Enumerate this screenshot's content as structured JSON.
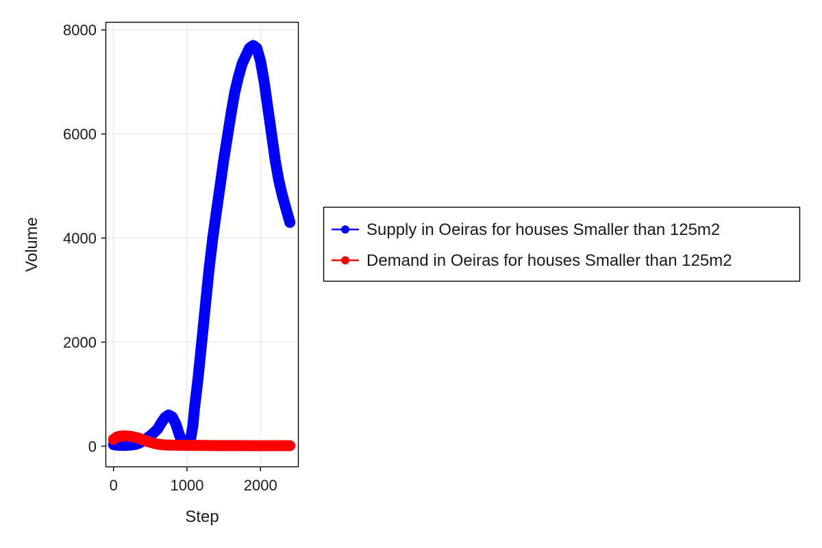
{
  "chart_data": {
    "type": "scatter",
    "title": "",
    "xlabel": "Step",
    "ylabel": "Volume",
    "xlim": [
      -100,
      2510
    ],
    "ylim": [
      -390,
      8140
    ],
    "xticks": [
      0,
      1000,
      2000
    ],
    "yticks": [
      0,
      2000,
      4000,
      6000,
      8000
    ],
    "grid": true,
    "legend_position": "right",
    "series": [
      {
        "name": "Supply in Oeiras for houses Smaller than 125m2",
        "color": "#0000ff",
        "x": [
          0,
          50,
          100,
          150,
          200,
          250,
          300,
          350,
          400,
          450,
          500,
          550,
          600,
          650,
          700,
          750,
          800,
          850,
          900,
          950,
          1000,
          1050,
          1080,
          1100,
          1150,
          1200,
          1250,
          1300,
          1350,
          1400,
          1450,
          1500,
          1550,
          1600,
          1650,
          1700,
          1750,
          1800,
          1850,
          1900,
          1950,
          2000,
          2050,
          2100,
          2150,
          2200,
          2250,
          2300,
          2350,
          2400
        ],
        "y": [
          30,
          20,
          15,
          15,
          20,
          25,
          35,
          60,
          100,
          150,
          200,
          260,
          330,
          450,
          550,
          600,
          560,
          420,
          200,
          80,
          50,
          150,
          400,
          700,
          1300,
          2000,
          2700,
          3400,
          4000,
          4500,
          5000,
          5500,
          5950,
          6400,
          6800,
          7100,
          7350,
          7500,
          7650,
          7700,
          7650,
          7400,
          7000,
          6500,
          6000,
          5500,
          5100,
          4800,
          4550,
          4300
        ]
      },
      {
        "name": "Demand in Oeiras for houses Smaller than 125m2",
        "color": "#ff0000",
        "x": [
          0,
          50,
          100,
          150,
          200,
          250,
          300,
          350,
          400,
          450,
          500,
          550,
          600,
          650,
          700,
          800,
          900,
          1000,
          1100,
          1200,
          1300,
          1400,
          1500,
          1600,
          1700,
          1800,
          1900,
          2000,
          2100,
          2200,
          2300,
          2400
        ],
        "y": [
          130,
          180,
          195,
          200,
          195,
          185,
          170,
          150,
          125,
          100,
          75,
          55,
          40,
          30,
          25,
          20,
          18,
          16,
          15,
          14,
          13,
          12,
          12,
          11,
          11,
          10,
          10,
          10,
          10,
          10,
          10,
          10
        ]
      }
    ]
  }
}
